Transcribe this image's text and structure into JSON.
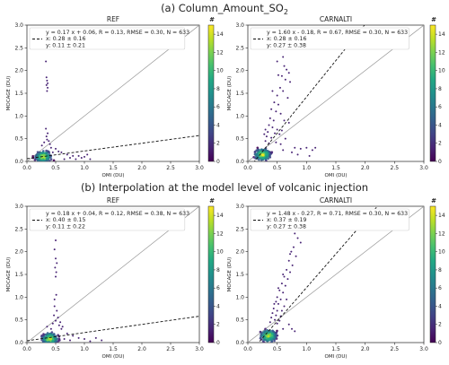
{
  "figure": {
    "section_a_title": "(a) Column_Amount_SO",
    "section_a_sub": "2",
    "section_b_title": "(b) Interpolation at the model level of volcanic injection"
  },
  "colors": {
    "cmap": [
      "#440154",
      "#482475",
      "#414487",
      "#355f8d",
      "#2a788e",
      "#21918c",
      "#22a884",
      "#44bf70",
      "#7ad151",
      "#bddf26",
      "#fde725"
    ],
    "regression_line": "#111111",
    "one_to_one": "#999999"
  },
  "chart_data": [
    {
      "type": "scatter",
      "panel": "a-ref",
      "title": "REF",
      "xlabel": "OMI (DU)",
      "ylabel": "MOCAGE (DU)",
      "xlim": [
        0,
        3
      ],
      "ylim": [
        0,
        3
      ],
      "xticks": [
        "0.0",
        "0.5",
        "1.0",
        "1.5",
        "2.0",
        "2.5",
        "3.0"
      ],
      "yticks": [
        "0.0",
        "0.5",
        "1.0",
        "1.5",
        "2.0",
        "2.5",
        "3.0"
      ],
      "regression": {
        "slope": 0.17,
        "intercept": 0.06
      },
      "stats": [
        "y = 0.17 x + 0.06, R = 0.13, RMSE = 0.30, N = 633",
        "x: 0.28 ± 0.16",
        "y: 0.11 ± 0.21"
      ],
      "colorbar": {
        "label": "#",
        "ticks": [
          "0",
          "2",
          "4",
          "6",
          "8",
          "10",
          "12",
          "14"
        ],
        "max": 15
      },
      "dense_center": [
        0.28,
        0.1
      ],
      "points": [
        [
          0.33,
          2.2
        ],
        [
          0.34,
          1.85
        ],
        [
          0.35,
          1.78
        ],
        [
          0.36,
          1.72
        ],
        [
          0.34,
          1.68
        ],
        [
          0.36,
          1.62
        ],
        [
          0.35,
          1.55
        ],
        [
          0.33,
          0.72
        ],
        [
          0.36,
          0.62
        ],
        [
          0.34,
          0.55
        ],
        [
          0.35,
          0.48
        ],
        [
          0.4,
          0.38
        ],
        [
          0.42,
          0.3
        ],
        [
          0.5,
          0.28
        ],
        [
          0.55,
          0.22
        ],
        [
          0.6,
          0.2
        ],
        [
          0.7,
          0.15
        ],
        [
          0.8,
          0.12
        ],
        [
          0.9,
          0.12
        ],
        [
          1.0,
          0.1
        ],
        [
          1.05,
          0.15
        ],
        [
          1.1,
          0.05
        ],
        [
          0.85,
          0.05
        ],
        [
          0.75,
          0.08
        ],
        [
          0.65,
          0.05
        ],
        [
          0.95,
          0.08
        ],
        [
          0.45,
          0.2
        ],
        [
          0.38,
          0.45
        ],
        [
          0.3,
          0.42
        ],
        [
          0.26,
          0.35
        ]
      ]
    },
    {
      "type": "scatter",
      "panel": "a-carnalti",
      "title": "CARNALTI",
      "xlabel": "OMI (DU)",
      "ylabel": "MOCAGE (DU)",
      "xlim": [
        0,
        3
      ],
      "ylim": [
        0,
        3
      ],
      "xticks": [
        "0.0",
        "0.5",
        "1.0",
        "1.5",
        "2.0",
        "2.5",
        "3.0"
      ],
      "yticks": [
        "0.0",
        "0.5",
        "1.0",
        "1.5",
        "2.0",
        "2.5",
        "3.0"
      ],
      "regression": {
        "slope": 1.6,
        "intercept": -0.18
      },
      "stats": [
        "y = 1.60 x - 0.18, R = 0.67, RMSE = 0.30, N = 633",
        "x: 0.28 ± 0.16",
        "y: 0.27 ± 0.38"
      ],
      "colorbar": {
        "label": "#",
        "ticks": [
          "0",
          "2",
          "4",
          "6",
          "8",
          "10",
          "12",
          "14"
        ],
        "max": 15
      },
      "dense_center": [
        0.25,
        0.15
      ],
      "points": [
        [
          0.62,
          2.1
        ],
        [
          0.66,
          2.02
        ],
        [
          0.7,
          1.95
        ],
        [
          0.58,
          1.88
        ],
        [
          0.64,
          1.8
        ],
        [
          0.72,
          1.75
        ],
        [
          0.55,
          1.62
        ],
        [
          0.6,
          1.55
        ],
        [
          0.5,
          1.45
        ],
        [
          0.68,
          1.4
        ],
        [
          0.45,
          1.3
        ],
        [
          0.52,
          1.25
        ],
        [
          0.4,
          1.15
        ],
        [
          0.48,
          1.1
        ],
        [
          0.56,
          1.05
        ],
        [
          0.38,
          0.95
        ],
        [
          0.44,
          0.9
        ],
        [
          0.62,
          0.9
        ],
        [
          0.7,
          0.85
        ],
        [
          0.36,
          0.8
        ],
        [
          0.42,
          0.75
        ],
        [
          0.5,
          0.7
        ],
        [
          0.58,
          0.68
        ],
        [
          0.34,
          0.65
        ],
        [
          0.46,
          0.62
        ],
        [
          0.54,
          0.6
        ],
        [
          0.32,
          0.55
        ],
        [
          0.4,
          0.52
        ],
        [
          0.64,
          0.5
        ],
        [
          0.3,
          0.45
        ],
        [
          0.48,
          0.42
        ],
        [
          0.36,
          0.4
        ],
        [
          0.56,
          0.38
        ],
        [
          0.8,
          0.3
        ],
        [
          0.9,
          0.28
        ],
        [
          1.0,
          0.3
        ],
        [
          1.1,
          0.25
        ],
        [
          1.15,
          0.3
        ],
        [
          0.75,
          0.2
        ],
        [
          0.85,
          0.15
        ],
        [
          1.05,
          0.12
        ],
        [
          0.6,
          0.25
        ],
        [
          0.3,
          0.7
        ],
        [
          0.28,
          0.6
        ],
        [
          0.42,
          1.55
        ],
        [
          0.52,
          1.9
        ],
        [
          0.6,
          2.3
        ],
        [
          0.5,
          2.2
        ]
      ]
    },
    {
      "type": "scatter",
      "panel": "b-ref",
      "title": "REF",
      "xlabel": "OMI (DU)",
      "ylabel": "MOCAGE (DU)",
      "xlim": [
        0,
        3
      ],
      "ylim": [
        0,
        3
      ],
      "xticks": [
        "0.0",
        "0.5",
        "1.0",
        "1.5",
        "2.0",
        "2.5",
        "3.0"
      ],
      "yticks": [
        "0.0",
        "0.5",
        "1.0",
        "1.5",
        "2.0",
        "2.5",
        "3.0"
      ],
      "regression": {
        "slope": 0.18,
        "intercept": 0.04
      },
      "stats": [
        "y = 0.18 x + 0.04, R = 0.12, RMSE = 0.38, N = 633",
        "x: 0.40 ± 0.15",
        "y: 0.11 ± 0.22"
      ],
      "colorbar": {
        "label": "#",
        "ticks": [
          "0",
          "2",
          "4",
          "6",
          "8",
          "10",
          "12",
          "14"
        ],
        "max": 15
      },
      "dense_center": [
        0.4,
        0.08
      ],
      "points": [
        [
          0.5,
          2.25
        ],
        [
          0.48,
          2.05
        ],
        [
          0.5,
          1.85
        ],
        [
          0.52,
          1.75
        ],
        [
          0.49,
          1.65
        ],
        [
          0.51,
          1.55
        ],
        [
          0.5,
          1.45
        ],
        [
          0.48,
          0.8
        ],
        [
          0.52,
          0.7
        ],
        [
          0.47,
          0.6
        ],
        [
          0.54,
          0.55
        ],
        [
          0.5,
          0.48
        ],
        [
          0.45,
          0.42
        ],
        [
          0.56,
          0.38
        ],
        [
          0.6,
          0.3
        ],
        [
          0.7,
          0.2
        ],
        [
          0.8,
          0.15
        ],
        [
          0.9,
          0.1
        ],
        [
          1.0,
          0.08
        ],
        [
          1.2,
          0.1
        ],
        [
          1.3,
          0.05
        ],
        [
          1.1,
          0.03
        ],
        [
          0.65,
          0.08
        ],
        [
          0.75,
          0.05
        ],
        [
          0.42,
          0.3
        ],
        [
          0.35,
          0.35
        ],
        [
          0.58,
          0.45
        ],
        [
          0.62,
          0.35
        ],
        [
          0.48,
          0.95
        ],
        [
          0.51,
          1.05
        ]
      ]
    },
    {
      "type": "scatter",
      "panel": "b-carnalti",
      "title": "CARNALTI",
      "xlabel": "OMI (DU)",
      "ylabel": "MOCAGE (DU)",
      "xlim": [
        0,
        3
      ],
      "ylim": [
        0,
        3
      ],
      "xticks": [
        "0.0",
        "0.5",
        "1.0",
        "1.5",
        "2.0",
        "2.5",
        "3.0"
      ],
      "yticks": [
        "0.0",
        "0.5",
        "1.0",
        "1.5",
        "2.0",
        "2.5",
        "3.0"
      ],
      "regression": {
        "slope": 1.48,
        "intercept": -0.27
      },
      "stats": [
        "y = 1.48 x - 0.27, R = 0.71, RMSE = 0.30, N = 633",
        "x: 0.37 ± 0.19",
        "y: 0.27 ± 0.38"
      ],
      "colorbar": {
        "label": "#",
        "ticks": [
          "0",
          "2",
          "4",
          "6",
          "8",
          "10",
          "12",
          "14"
        ],
        "max": 15
      },
      "dense_center": [
        0.35,
        0.15
      ],
      "points": [
        [
          0.8,
          2.4
        ],
        [
          0.85,
          2.3
        ],
        [
          0.9,
          2.2
        ],
        [
          0.78,
          2.1
        ],
        [
          0.72,
          1.95
        ],
        [
          0.82,
          1.9
        ],
        [
          0.7,
          1.8
        ],
        [
          0.76,
          1.7
        ],
        [
          0.66,
          1.6
        ],
        [
          0.72,
          1.55
        ],
        [
          0.62,
          1.45
        ],
        [
          0.68,
          1.4
        ],
        [
          0.58,
          1.3
        ],
        [
          0.64,
          1.25
        ],
        [
          0.54,
          1.15
        ],
        [
          0.6,
          1.1
        ],
        [
          0.5,
          1.0
        ],
        [
          0.56,
          0.95
        ],
        [
          0.66,
          0.95
        ],
        [
          0.48,
          0.9
        ],
        [
          0.52,
          0.85
        ],
        [
          0.62,
          0.8
        ],
        [
          0.44,
          0.75
        ],
        [
          0.5,
          0.7
        ],
        [
          0.58,
          0.7
        ],
        [
          0.42,
          0.65
        ],
        [
          0.48,
          0.6
        ],
        [
          0.56,
          0.58
        ],
        [
          0.4,
          0.55
        ],
        [
          0.46,
          0.5
        ],
        [
          0.54,
          0.48
        ],
        [
          0.38,
          0.45
        ],
        [
          0.5,
          0.42
        ],
        [
          0.7,
          0.4
        ],
        [
          0.75,
          0.3
        ],
        [
          0.8,
          0.25
        ],
        [
          0.6,
          0.3
        ],
        [
          0.45,
          0.85
        ],
        [
          0.52,
          1.2
        ],
        [
          0.6,
          1.5
        ],
        [
          0.74,
          2.0
        ]
      ]
    }
  ]
}
